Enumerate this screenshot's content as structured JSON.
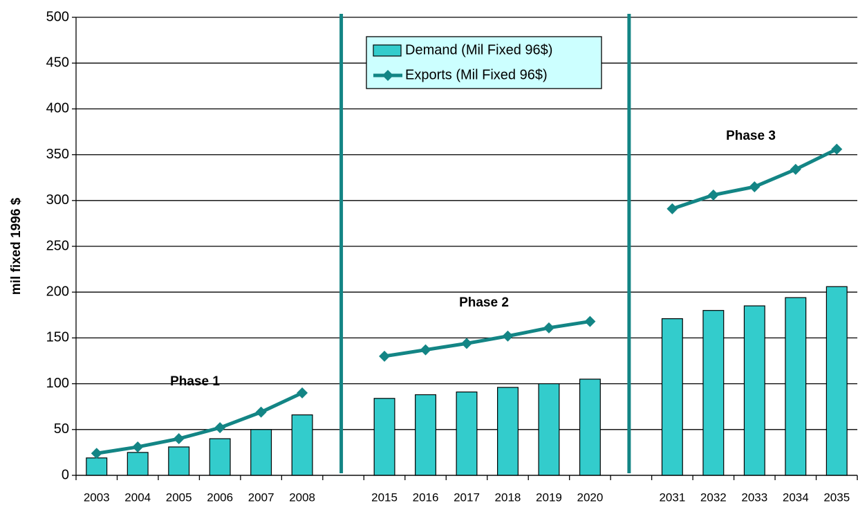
{
  "chart_data": {
    "type": "bar",
    "y_label": "mil fixed 1996 $",
    "categories": [
      "2003",
      "2004",
      "2005",
      "2006",
      "2007",
      "2008",
      null,
      "2015",
      "2016",
      "2017",
      "2018",
      "2019",
      "2020",
      null,
      "2031",
      "2032",
      "2033",
      "2034",
      "2035"
    ],
    "series": [
      {
        "name": "Demand (Mil Fixed 96$)",
        "type": "bar",
        "color": "#33cccc",
        "values": [
          19,
          25,
          31,
          40,
          50,
          66,
          null,
          84,
          88,
          91,
          96,
          100,
          105,
          null,
          171,
          180,
          185,
          194,
          206
        ]
      },
      {
        "name": "Exports (Mil Fixed 96$)",
        "type": "line",
        "color": "#138585",
        "values": [
          24,
          31,
          40,
          52,
          69,
          90,
          null,
          130,
          137,
          144,
          152,
          161,
          168,
          null,
          291,
          306,
          315,
          334,
          356
        ]
      }
    ],
    "annotations": [
      "Phase 1",
      "Phase 2",
      "Phase 3"
    ],
    "ylim": [
      0,
      500
    ],
    "yticks": [
      0,
      50,
      100,
      150,
      200,
      250,
      300,
      350,
      400,
      450,
      500
    ],
    "grid": true
  }
}
